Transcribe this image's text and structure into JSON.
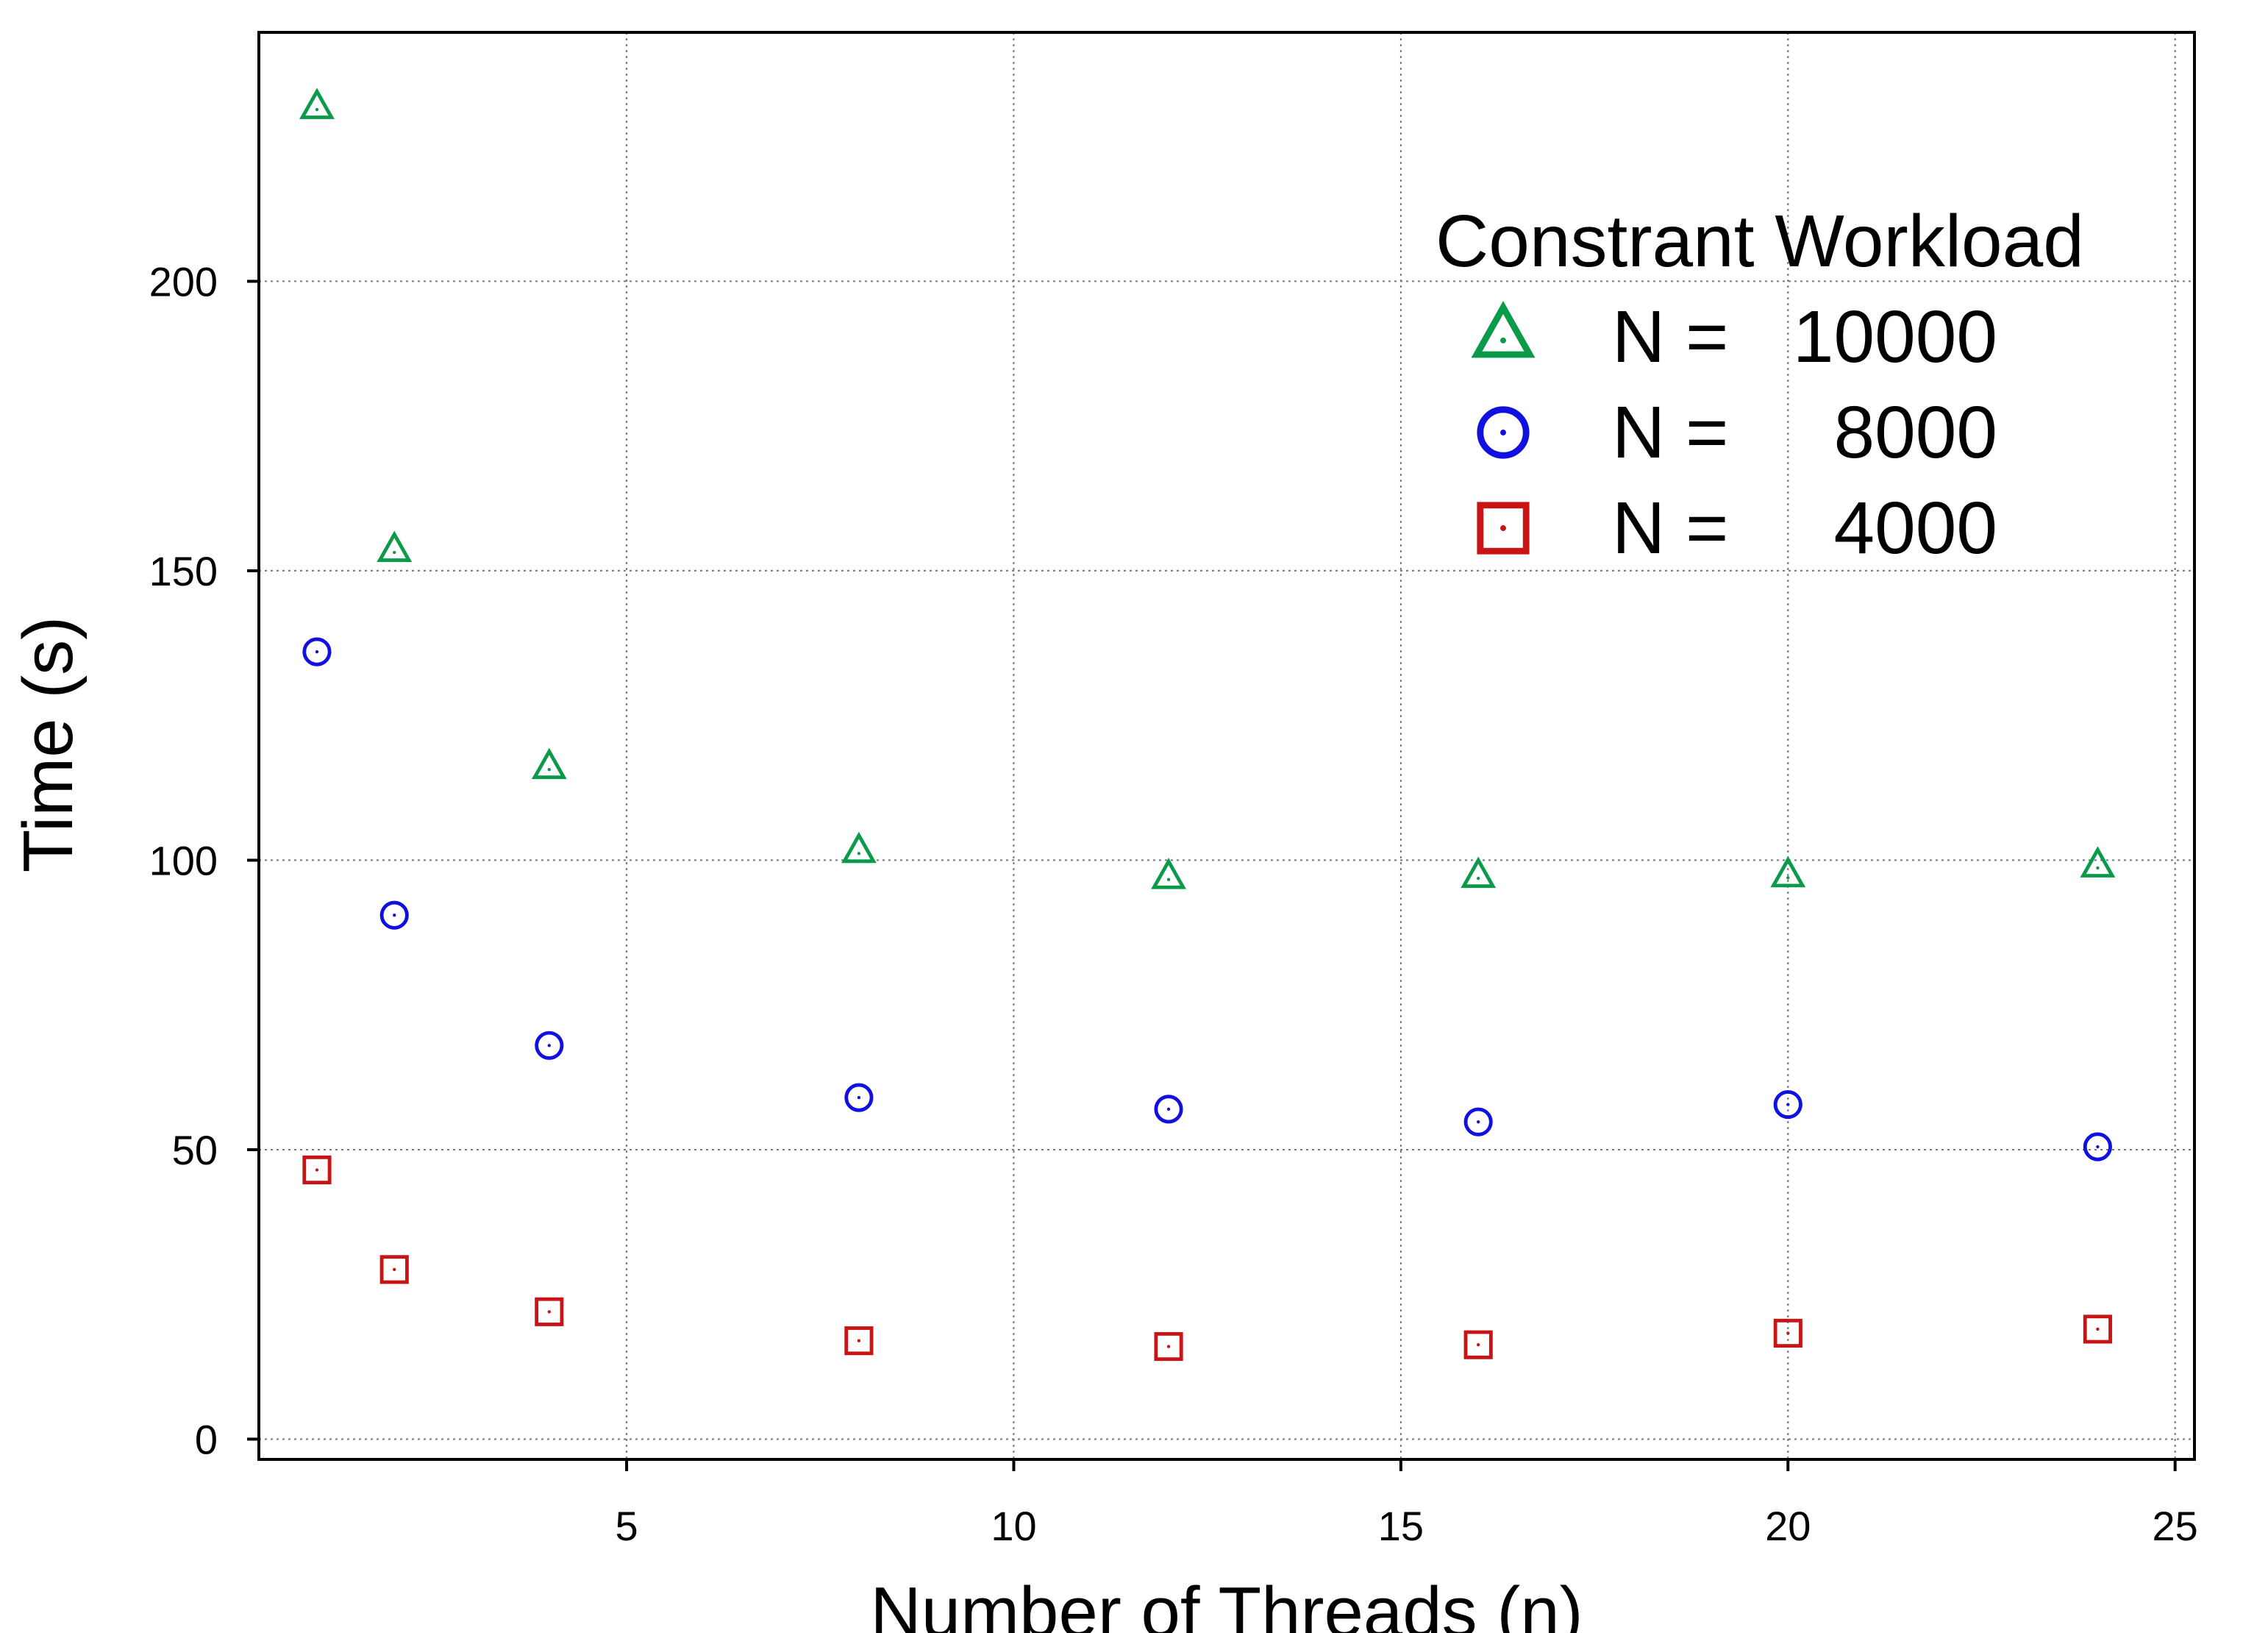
{
  "chart_data": {
    "type": "scatter",
    "title": "",
    "xlabel": "Number of Threads (n)",
    "ylabel": "Time (s)",
    "xlim": [
      0.25,
      25.25
    ],
    "ylim": [
      -3.5,
      243
    ],
    "x_ticks": [
      5,
      10,
      15,
      20,
      25
    ],
    "y_ticks": [
      0,
      50,
      100,
      150,
      200
    ],
    "grid": true,
    "legend_position": "top-right",
    "legend_title": "Constrant Workload",
    "series": [
      {
        "name": "N = 10000",
        "label_prefix": "N =",
        "label_value": "10000",
        "marker": "triangle",
        "color": "#0a9a4a",
        "x": [
          1,
          2,
          4,
          8,
          12,
          16,
          20,
          24
        ],
        "y": [
          230,
          153.5,
          116,
          101.5,
          97,
          97.2,
          97.3,
          99
        ]
      },
      {
        "name": "N = 8000",
        "label_prefix": "N =",
        "label_value": "8000",
        "marker": "circle",
        "color": "#1010e0",
        "x": [
          1,
          2,
          4,
          8,
          12,
          16,
          20,
          24
        ],
        "y": [
          136,
          90.5,
          68,
          59,
          57,
          54.8,
          57.8,
          50.5
        ]
      },
      {
        "name": "N = 4000",
        "label_prefix": "N =",
        "label_value": "4000",
        "marker": "square",
        "color": "#c81414",
        "x": [
          1,
          2,
          4,
          8,
          12,
          16,
          20,
          24
        ],
        "y": [
          46.5,
          29.3,
          22,
          17,
          16,
          16.3,
          18.3,
          19
        ]
      }
    ]
  }
}
